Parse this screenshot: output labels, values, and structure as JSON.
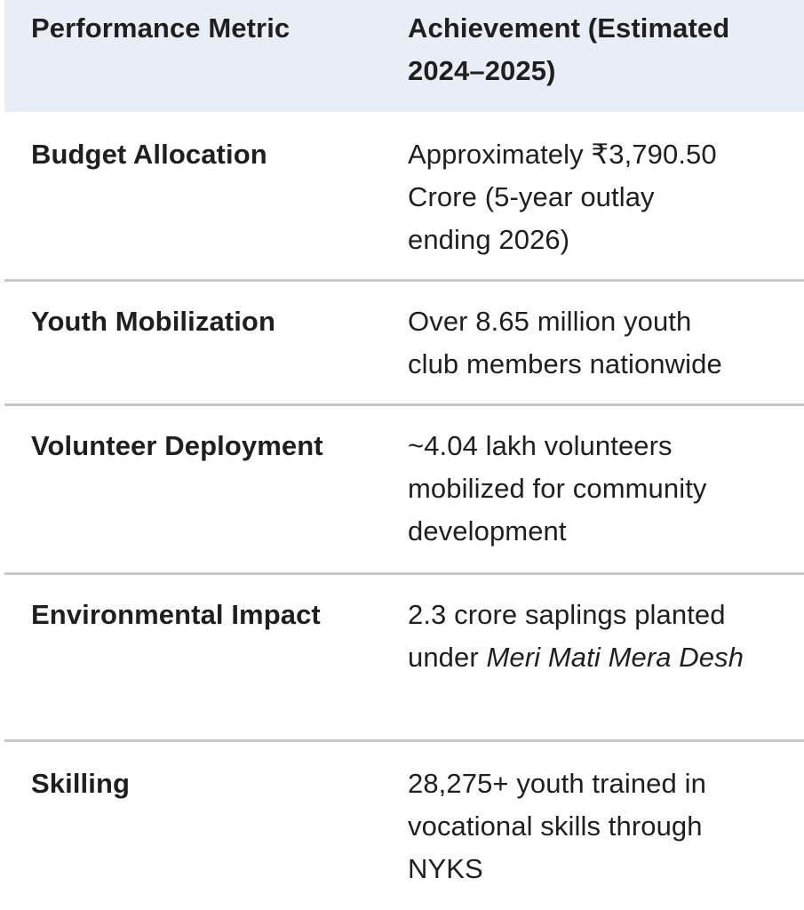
{
  "table": {
    "headers": {
      "metric": "Performance Metric",
      "achievement_line1": "Achievement (Estimated",
      "achievement_line2": "2024–2025)"
    },
    "rows": [
      {
        "metric": "Budget Allocation",
        "value_lines": [
          "Approximately ₹3,790.50",
          "Crore (5-year outlay",
          "ending 2026)"
        ]
      },
      {
        "metric": "Youth Mobilization",
        "value_lines": [
          "Over 8.65 million youth",
          "club members nationwide"
        ]
      },
      {
        "metric": "Volunteer Deployment",
        "value_lines": [
          "~4.04 lakh volunteers",
          "mobilized for community",
          "development"
        ]
      },
      {
        "metric": "Environmental Impact",
        "value_line1": "2.3 crore saplings planted",
        "value_line2_prefix": "under ",
        "value_line2_italic": "Meri Mati Mera Desh"
      },
      {
        "metric": "Skilling",
        "value_lines": [
          "28,275+ youth trained in",
          "vocational skills through",
          "NYKS"
        ]
      }
    ]
  }
}
